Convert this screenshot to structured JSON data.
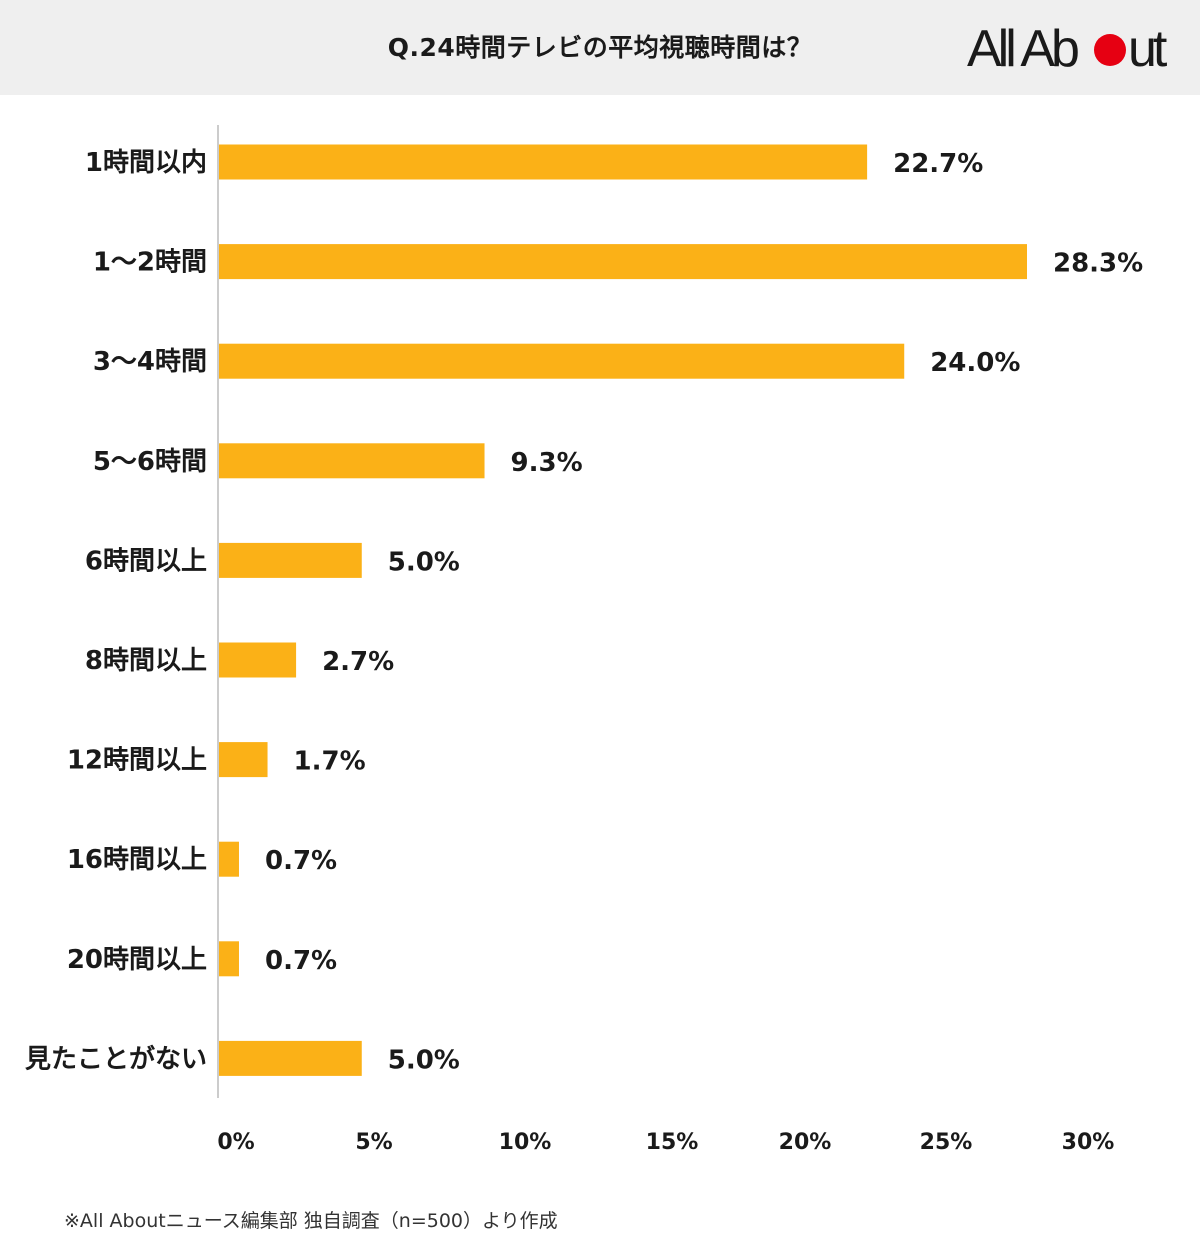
{
  "header": {
    "title": "Q.24時間テレビの平均視聴時間は？",
    "logo_text_left": "All Ab",
    "logo_text_right": "ut",
    "logo_text_full": "All About"
  },
  "footer": {
    "note": "※All Aboutニュース編集部 独自調査（n=500）より作成"
  },
  "colors": {
    "bar": "#FBB117",
    "logo_dot": "#E60012",
    "header_bg": "#EFEFEF"
  },
  "chart_data": {
    "type": "bar",
    "orientation": "horizontal",
    "title": "Q.24時間テレビの平均視聴時間は？",
    "categories": [
      "1時間以内",
      "1〜2時間",
      "3〜4時間",
      "5〜6時間",
      "6時間以上",
      "8時間以上",
      "12時間以上",
      "16時間以上",
      "20時間以上",
      "見たことがない"
    ],
    "values": [
      22.7,
      28.3,
      24.0,
      9.3,
      5.0,
      2.7,
      1.7,
      0.7,
      0.7,
      5.0
    ],
    "value_labels": [
      "22.7%",
      "28.3%",
      "24.0%",
      "9.3%",
      "5.0%",
      "2.7%",
      "1.7%",
      "0.7%",
      "0.7%",
      "5.0%"
    ],
    "xlim": [
      0,
      30
    ],
    "x_ticks": [
      "0%",
      "5%",
      "10%",
      "15%",
      "20%",
      "25%",
      "30%"
    ],
    "x_tick_values": [
      0,
      5,
      10,
      15,
      20,
      25,
      30
    ],
    "grid": false,
    "legend": "none"
  }
}
